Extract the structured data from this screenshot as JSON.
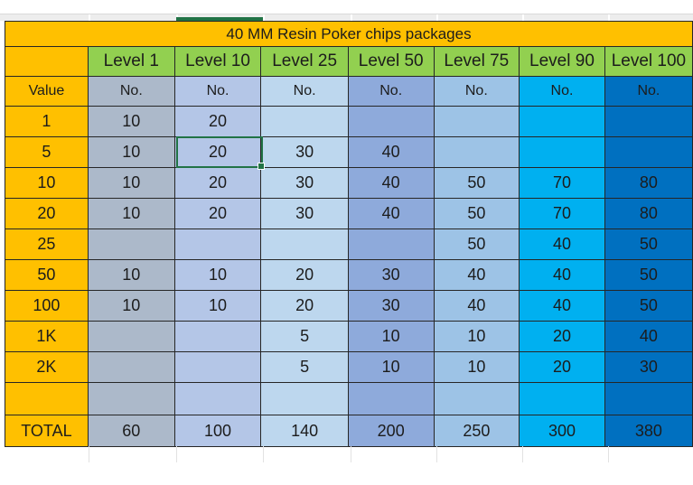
{
  "title": "40 MM Resin Poker chips packages",
  "sheet": {
    "value_header": "Value",
    "count_header": "No.",
    "total_label": "TOTAL"
  },
  "columns": [
    {
      "label": "Level 1",
      "fill": "#ACB9CA"
    },
    {
      "label": "Level 10",
      "fill": "#B4C6E7"
    },
    {
      "label": "Level 25",
      "fill": "#BDD7EE"
    },
    {
      "label": "Level 50",
      "fill": "#8EAADB"
    },
    {
      "label": "Level 75",
      "fill": "#9DC3E6"
    },
    {
      "label": "Level 90",
      "fill": "#00B0F0"
    },
    {
      "label": "Level 100",
      "fill": "#0070C0"
    }
  ],
  "rows": [
    {
      "value": "1",
      "counts": [
        "10",
        "20",
        "",
        "",
        "",
        "",
        ""
      ]
    },
    {
      "value": "5",
      "counts": [
        "10",
        "20",
        "30",
        "40",
        "",
        "",
        ""
      ]
    },
    {
      "value": "10",
      "counts": [
        "10",
        "20",
        "30",
        "40",
        "50",
        "70",
        "80"
      ]
    },
    {
      "value": "20",
      "counts": [
        "10",
        "20",
        "30",
        "40",
        "50",
        "70",
        "80"
      ]
    },
    {
      "value": "25",
      "counts": [
        "",
        "",
        "",
        "",
        "50",
        "40",
        "50"
      ]
    },
    {
      "value": "50",
      "counts": [
        "10",
        "10",
        "20",
        "30",
        "40",
        "40",
        "50"
      ]
    },
    {
      "value": "100",
      "counts": [
        "10",
        "10",
        "20",
        "30",
        "40",
        "40",
        "50"
      ]
    },
    {
      "value": "1K",
      "counts": [
        "",
        "",
        "5",
        "10",
        "10",
        "20",
        "40"
      ]
    },
    {
      "value": "2K",
      "counts": [
        "",
        "",
        "5",
        "10",
        "10",
        "20",
        "30"
      ]
    }
  ],
  "totals": [
    "60",
    "100",
    "140",
    "200",
    "250",
    "300",
    "380"
  ],
  "selection": {
    "row_value": "5",
    "column": "Level 10",
    "cell_value": "20"
  },
  "colors": {
    "value_column": "#FFC000",
    "level_header": "#92D050",
    "grid_border": "#262626",
    "selection_green": "#217346",
    "header_strip": "#EDEDED",
    "strip_line": "#D9D9D9"
  }
}
